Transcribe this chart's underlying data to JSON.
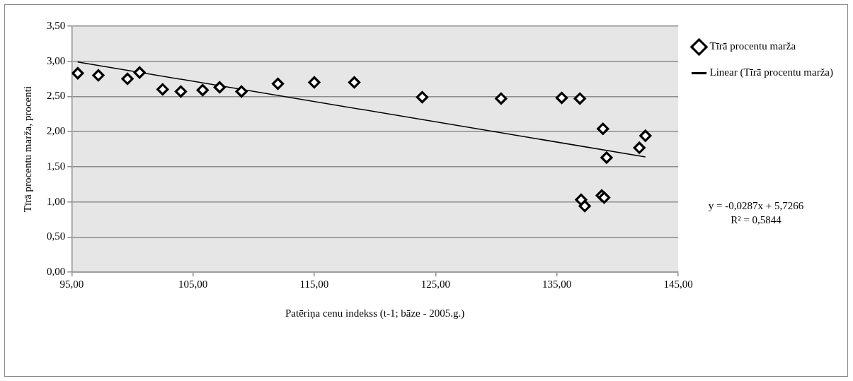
{
  "chart_data": {
    "type": "scatter",
    "xlabel": "Patēriņa cenu indekss (t-1; bāze - 2005.g.)",
    "ylabel": "Tīrā procentu marža, procenti",
    "x": [
      95.5,
      97.2,
      99.6,
      100.6,
      102.5,
      104.0,
      105.8,
      107.2,
      109.0,
      112.0,
      115.0,
      118.3,
      123.9,
      130.4,
      135.4,
      136.9,
      138.8,
      142.3,
      141.8,
      139.1,
      137.0,
      137.3,
      138.7,
      138.9
    ],
    "series": [
      {
        "name": "Tīrā procentu marža",
        "color": "#000000",
        "marker": "diamond",
        "values": [
          2.83,
          2.8,
          2.75,
          2.84,
          2.6,
          2.57,
          2.59,
          2.63,
          2.57,
          2.68,
          2.7,
          2.7,
          2.49,
          2.47,
          2.48,
          2.47,
          2.04,
          1.94,
          1.77,
          1.63,
          1.03,
          0.94,
          1.09,
          1.06
        ]
      },
      {
        "name": "Linear (Tīrā procentu marža)",
        "type": "line",
        "color": "#000000",
        "marker": "none",
        "x": [
          95.5,
          142.3
        ],
        "values": [
          2.99,
          1.64
        ]
      }
    ],
    "xlim": [
      95,
      145
    ],
    "xticks": [
      {
        "value": 95,
        "label": "95,00"
      },
      {
        "value": 105,
        "label": "105,00"
      },
      {
        "value": 115,
        "label": "115,00"
      },
      {
        "value": 125,
        "label": "125,00"
      },
      {
        "value": 135,
        "label": "135,00"
      },
      {
        "value": 145,
        "label": "145,00"
      }
    ],
    "ylim": [
      0,
      3.5
    ],
    "yticks": [
      {
        "value": 0,
        "label": "0,00"
      },
      {
        "value": 0.5,
        "label": "0,50"
      },
      {
        "value": 1,
        "label": "1,00"
      },
      {
        "value": 1.5,
        "label": "1,50"
      },
      {
        "value": 2,
        "label": "2,00"
      },
      {
        "value": 2.5,
        "label": "2,50"
      },
      {
        "value": 3,
        "label": "3,00"
      },
      {
        "value": 3.5,
        "label": "3,50"
      }
    ],
    "grid": "y",
    "legend": "right",
    "annotations": [
      "y = -0,0287x + 5,7266",
      "R² = 0,5844"
    ]
  }
}
